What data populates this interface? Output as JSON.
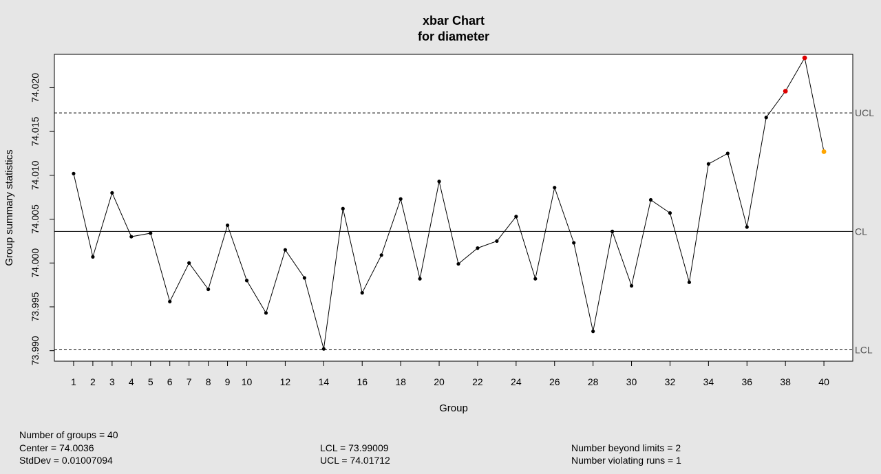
{
  "chart_data": {
    "type": "line",
    "title": "xbar Chart",
    "subtitle": "for diameter",
    "xlabel": "Group",
    "ylabel": "Group summary statistics",
    "xlim": [
      0,
      41.5
    ],
    "ylim": [
      73.9888,
      74.0238
    ],
    "x_ticks": [
      1,
      2,
      3,
      4,
      5,
      6,
      7,
      8,
      9,
      10,
      12,
      14,
      16,
      18,
      20,
      22,
      24,
      26,
      28,
      30,
      32,
      34,
      36,
      38,
      40
    ],
    "y_ticks": [
      {
        "value": 73.99,
        "label": "73.990"
      },
      {
        "value": 73.995,
        "label": "73.995"
      },
      {
        "value": 74.0,
        "label": "74.000"
      },
      {
        "value": 74.005,
        "label": "74.005"
      },
      {
        "value": 74.01,
        "label": "74.010"
      },
      {
        "value": 74.015,
        "label": "74.015"
      },
      {
        "value": 74.02,
        "label": "74.020"
      }
    ],
    "series": [
      {
        "values": [
          74.0102,
          74.0007,
          74.008,
          74.003,
          74.0034,
          73.9956,
          74.0,
          73.997,
          74.0043,
          73.998,
          73.9943,
          74.0015,
          73.9983,
          73.9902,
          74.0062,
          73.9966,
          74.0009,
          74.0073,
          73.9982,
          74.0093,
          73.9999,
          74.0017,
          74.0025,
          74.0053,
          73.9982,
          74.0086,
          74.0023,
          73.9922,
          74.0036,
          73.9974,
          74.0072,
          74.0057,
          73.9978,
          74.0113,
          74.0125,
          74.0041,
          74.0166,
          74.0196,
          74.0234,
          74.0127
        ]
      }
    ],
    "point_status": {
      "beyond_limits": [
        38,
        39
      ],
      "violating_runs": [
        40
      ]
    },
    "limits": {
      "ucl": 74.01712,
      "cl": 74.0036,
      "lcl": 73.99009,
      "ucl_label": "UCL",
      "cl_label": "CL",
      "lcl_label": "LCL"
    },
    "colors": {
      "normal": "#000000",
      "beyond": "#dd0000",
      "runs": "#ffa500",
      "background": "#e6e6e6",
      "plot_bg": "#ffffff"
    }
  },
  "stats": {
    "number_of_groups": "Number of groups = 40",
    "center": "Center = 74.0036",
    "stddev": "StdDev = 0.01007094",
    "lcl": "LCL = 73.99009",
    "ucl": "UCL = 74.01712",
    "beyond_limits": "Number beyond limits = 2",
    "violating_runs": "Number violating runs = 1"
  }
}
